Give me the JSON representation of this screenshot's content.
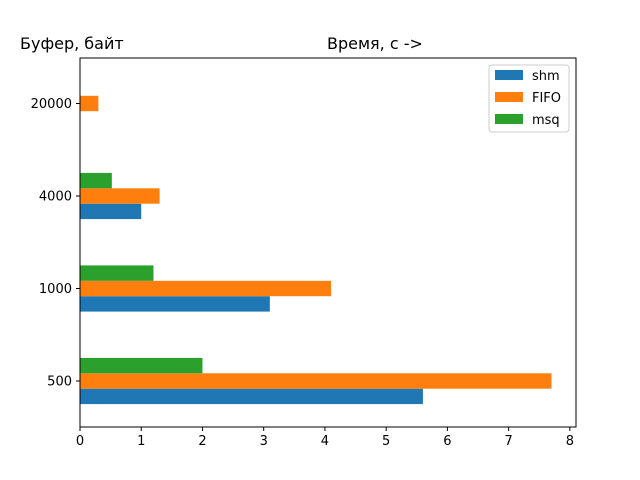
{
  "chart_data": {
    "type": "bar",
    "orientation": "horizontal",
    "ylabel": "Буфер, байт",
    "xlabel": "Время, с ->",
    "categories": [
      "500",
      "1000",
      "4000",
      "20000"
    ],
    "series": [
      {
        "name": "shm",
        "color": "#1f77b4",
        "values": [
          5.6,
          3.1,
          1.0,
          0
        ]
      },
      {
        "name": "FIFO",
        "color": "#ff7f0e",
        "values": [
          7.7,
          4.1,
          1.3,
          0.3
        ]
      },
      {
        "name": "msq",
        "color": "#2ca02c",
        "values": [
          2.0,
          1.2,
          0.52,
          0
        ]
      }
    ],
    "xlim": [
      0,
      8.1
    ],
    "xticks": [
      "0",
      "1",
      "2",
      "3",
      "4",
      "5",
      "6",
      "7",
      "8"
    ],
    "grid": false,
    "legend_position": "top-right"
  }
}
